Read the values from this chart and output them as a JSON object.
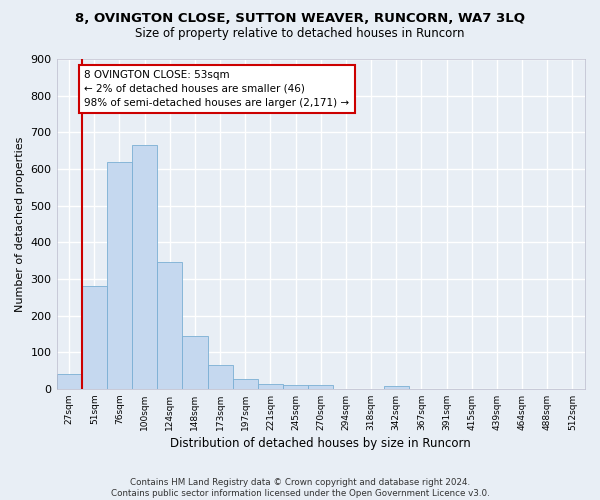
{
  "title": "8, OVINGTON CLOSE, SUTTON WEAVER, RUNCORN, WA7 3LQ",
  "subtitle": "Size of property relative to detached houses in Runcorn",
  "xlabel": "Distribution of detached houses by size in Runcorn",
  "ylabel": "Number of detached properties",
  "bin_labels": [
    "27sqm",
    "51sqm",
    "76sqm",
    "100sqm",
    "124sqm",
    "148sqm",
    "173sqm",
    "197sqm",
    "221sqm",
    "245sqm",
    "270sqm",
    "294sqm",
    "318sqm",
    "342sqm",
    "367sqm",
    "391sqm",
    "415sqm",
    "439sqm",
    "464sqm",
    "488sqm",
    "512sqm"
  ],
  "bar_values": [
    40,
    280,
    620,
    665,
    345,
    145,
    65,
    28,
    12,
    11,
    10,
    0,
    0,
    8,
    0,
    0,
    0,
    0,
    0,
    0,
    0
  ],
  "bar_color": "#c5d8ef",
  "bar_edge_color": "#7aafd4",
  "highlight_color": "#cc0000",
  "annotation_text": "8 OVINGTON CLOSE: 53sqm\n← 2% of detached houses are smaller (46)\n98% of semi-detached houses are larger (2,171) →",
  "annotation_box_color": "white",
  "annotation_box_edge": "#cc0000",
  "ylim": [
    0,
    900
  ],
  "yticks": [
    0,
    100,
    200,
    300,
    400,
    500,
    600,
    700,
    800,
    900
  ],
  "footer_line1": "Contains HM Land Registry data © Crown copyright and database right 2024.",
  "footer_line2": "Contains public sector information licensed under the Open Government Licence v3.0.",
  "bg_color": "#e8eef5",
  "grid_color": "white",
  "title_fontsize": 9.5,
  "subtitle_fontsize": 8.5
}
